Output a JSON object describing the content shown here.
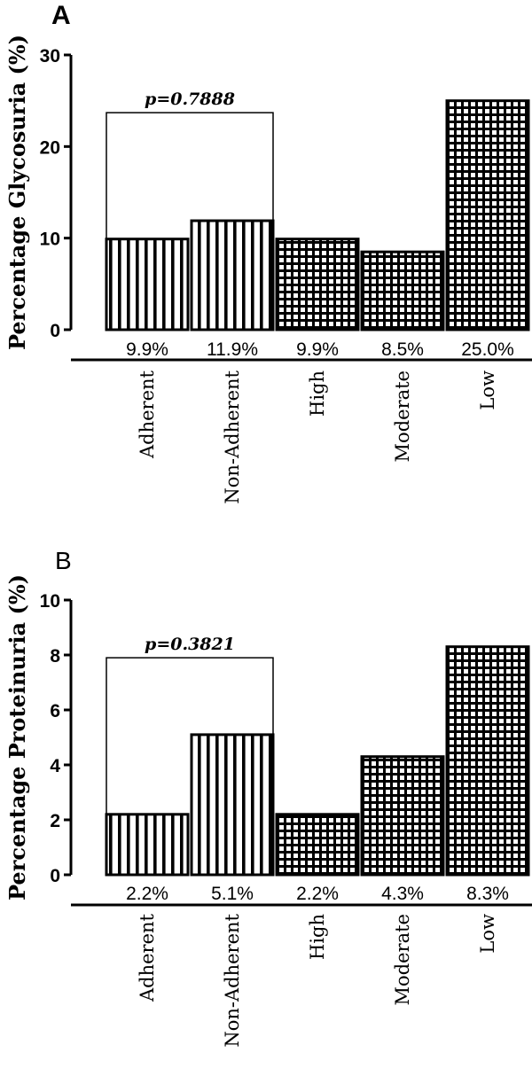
{
  "chart_data": [
    {
      "type": "bar",
      "panel": "A",
      "ylabel": "Percentage Glycosuria (%)",
      "ylim": [
        0,
        30
      ],
      "yticks": [
        0,
        10,
        20,
        30
      ],
      "categories": [
        "Adherent",
        "Non-Adherent",
        "High",
        "Moderate",
        "Low"
      ],
      "values": [
        9.9,
        11.9,
        9.9,
        8.5,
        25.0
      ],
      "data_labels": [
        "9.9%",
        "11.9%",
        "9.9%",
        "8.5%",
        "25.0%"
      ],
      "patterns": [
        "vertical-stripes",
        "vertical-stripes",
        "grid",
        "grid",
        "grid"
      ],
      "comparison": {
        "label": "p=0.7888",
        "from": 0,
        "to": 1,
        "level": 23.7
      },
      "grid": false
    },
    {
      "type": "bar",
      "panel": "B",
      "ylabel": "Percentage Proteinuria (%)",
      "ylim": [
        0,
        10
      ],
      "yticks": [
        0,
        2,
        4,
        6,
        8,
        10
      ],
      "categories": [
        "Adherent",
        "Non-Adherent",
        "High",
        "Moderate",
        "Low"
      ],
      "values": [
        2.2,
        5.1,
        2.2,
        4.3,
        8.3
      ],
      "data_labels": [
        "2.2%",
        "5.1%",
        "2.2%",
        "4.3%",
        "8.3%"
      ],
      "patterns": [
        "vertical-stripes",
        "vertical-stripes",
        "grid",
        "grid",
        "grid"
      ],
      "comparison": {
        "label": "p=0.3821",
        "from": 0,
        "to": 1,
        "level": 7.9
      },
      "grid": false
    }
  ]
}
